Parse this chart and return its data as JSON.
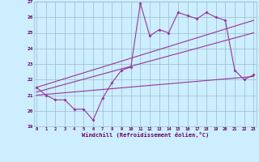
{
  "xlabel": "Windchill (Refroidissement éolien,°C)",
  "x": [
    0,
    1,
    2,
    3,
    4,
    5,
    6,
    7,
    8,
    9,
    10,
    11,
    12,
    13,
    14,
    15,
    16,
    17,
    18,
    19,
    20,
    21,
    22,
    23
  ],
  "line1": [
    21.5,
    21.0,
    20.7,
    20.7,
    20.1,
    20.1,
    19.4,
    20.8,
    21.8,
    22.6,
    22.8,
    26.9,
    24.8,
    25.2,
    25.0,
    26.3,
    26.1,
    25.9,
    26.3,
    26.0,
    25.8,
    22.6,
    22.0,
    22.3
  ],
  "trend1_x": [
    0,
    23
  ],
  "trend1_y": [
    21.5,
    25.8
  ],
  "trend2_x": [
    0,
    23
  ],
  "trend2_y": [
    21.2,
    25.0
  ],
  "trend3_x": [
    0,
    23
  ],
  "trend3_y": [
    21.0,
    22.2
  ],
  "ylim": [
    19,
    27
  ],
  "xlim": [
    -0.3,
    23.3
  ],
  "yticks": [
    19,
    20,
    21,
    22,
    23,
    24,
    25,
    26,
    27
  ],
  "xticks": [
    0,
    1,
    2,
    3,
    4,
    5,
    6,
    7,
    8,
    9,
    10,
    11,
    12,
    13,
    14,
    15,
    16,
    17,
    18,
    19,
    20,
    21,
    22,
    23
  ],
  "line_color": "#993399",
  "bg_color": "#cceeff",
  "grid_color": "#99bbcc",
  "markersize": 2.0
}
